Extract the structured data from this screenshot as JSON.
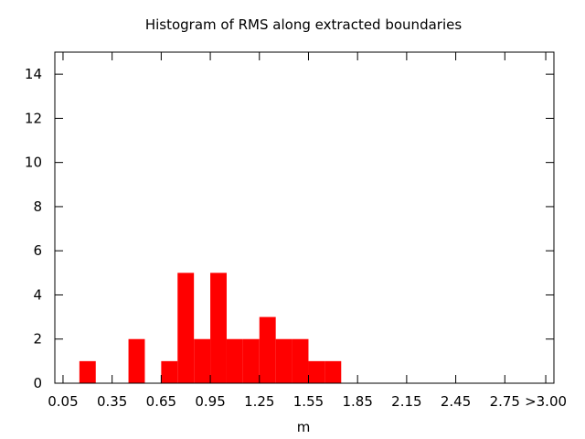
{
  "chart_data": {
    "type": "bar",
    "title": "Histogram of RMS along extracted boundaries",
    "xlabel": "m",
    "ylabel": "",
    "xlim": [
      0.0,
      3.05
    ],
    "ylim": [
      0,
      15
    ],
    "bin_width": 0.1,
    "bars_color": "#ff0000",
    "grid": false,
    "x_ticks": [
      {
        "value": 0.05,
        "label": "0.05"
      },
      {
        "value": 0.35,
        "label": "0.35"
      },
      {
        "value": 0.65,
        "label": "0.65"
      },
      {
        "value": 0.95,
        "label": "0.95"
      },
      {
        "value": 1.25,
        "label": "1.25"
      },
      {
        "value": 1.55,
        "label": "1.55"
      },
      {
        "value": 1.85,
        "label": "1.85"
      },
      {
        "value": 2.15,
        "label": "2.15"
      },
      {
        "value": 2.45,
        "label": "2.45"
      },
      {
        "value": 2.75,
        "label": "2.75"
      },
      {
        "value": 3.0,
        "label": ">3.00"
      }
    ],
    "y_ticks": [
      0,
      2,
      4,
      6,
      8,
      10,
      12,
      14
    ],
    "bins": [
      {
        "x": 0.2,
        "value": 1
      },
      {
        "x": 0.5,
        "value": 2
      },
      {
        "x": 0.7,
        "value": 1
      },
      {
        "x": 0.8,
        "value": 5
      },
      {
        "x": 0.9,
        "value": 2
      },
      {
        "x": 1.0,
        "value": 5
      },
      {
        "x": 1.1,
        "value": 2
      },
      {
        "x": 1.2,
        "value": 2
      },
      {
        "x": 1.3,
        "value": 3
      },
      {
        "x": 1.4,
        "value": 2
      },
      {
        "x": 1.5,
        "value": 2
      },
      {
        "x": 1.6,
        "value": 1
      },
      {
        "x": 1.7,
        "value": 1
      }
    ]
  }
}
